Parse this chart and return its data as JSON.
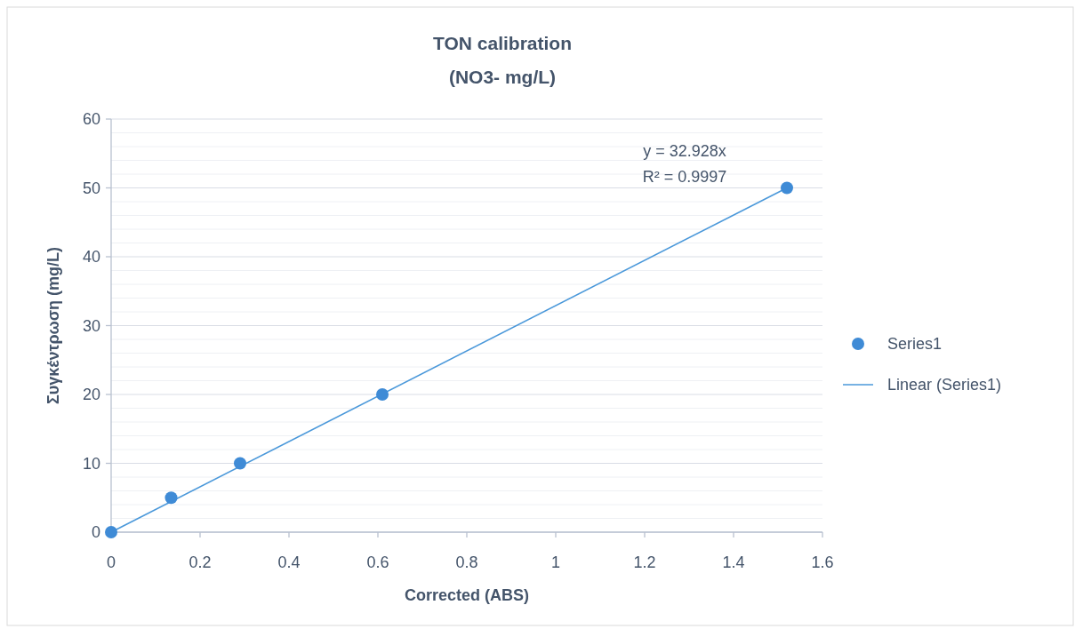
{
  "chart_data": {
    "type": "scatter",
    "title": "TON calibration",
    "subtitle": "(NO3- mg/L)",
    "xlabel": "Corrected (ABS)",
    "ylabel": "Συγκέντρωση (mg/L)",
    "x": [
      0,
      0.135,
      0.29,
      0.61,
      1.52
    ],
    "series": [
      {
        "name": "Series1",
        "color": "#3f8bd6",
        "values": [
          0,
          5,
          10,
          20,
          50
        ],
        "marker": "circle"
      },
      {
        "name": "Linear (Series1)",
        "type": "line",
        "color": "#4a98da",
        "x": [
          0,
          1.52
        ],
        "values": [
          0,
          50
        ],
        "marker": "none",
        "line_style": "solid"
      }
    ],
    "annotations": [
      "y = 32.928x",
      "R² = 0.9997"
    ],
    "xlim": [
      0,
      1.6
    ],
    "xticks": [
      0,
      0.2,
      0.4,
      0.6,
      0.8,
      1,
      1.2,
      1.4,
      1.6
    ],
    "ylim": [
      0,
      60
    ],
    "yticks": [
      0,
      {
        "value": 2,
        "label": null
      },
      {
        "value": 4,
        "label": null
      },
      {
        "value": 6,
        "label": null
      },
      {
        "value": 8,
        "label": null
      },
      10,
      {
        "value": 12,
        "label": null
      },
      {
        "value": 14,
        "label": null
      },
      {
        "value": 16,
        "label": null
      },
      {
        "value": 18,
        "label": null
      },
      20,
      {
        "value": 22,
        "label": null
      },
      {
        "value": 24,
        "label": null
      },
      {
        "value": 26,
        "label": null
      },
      {
        "value": 28,
        "label": null
      },
      30,
      {
        "value": 32,
        "label": null
      },
      {
        "value": 34,
        "label": null
      },
      {
        "value": 36,
        "label": null
      },
      {
        "value": 38,
        "label": null
      },
      40,
      {
        "value": 42,
        "label": null
      },
      {
        "value": 44,
        "label": null
      },
      {
        "value": 46,
        "label": null
      },
      {
        "value": 48,
        "label": null
      },
      50,
      {
        "value": 52,
        "label": null
      },
      {
        "value": 54,
        "label": null
      },
      {
        "value": 56,
        "label": null
      },
      {
        "value": 58,
        "label": null
      },
      60
    ],
    "grid": "y",
    "legend": "right"
  }
}
